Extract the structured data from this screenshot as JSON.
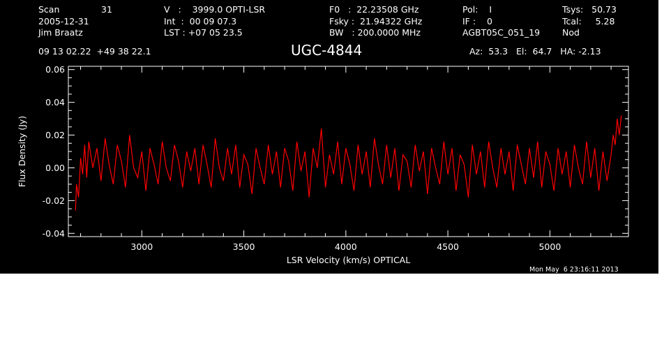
{
  "header": {
    "row1": {
      "scan_label": "Scan",
      "scan_value": "31",
      "velocity": "V   :    3999.0 OPTI-LSR",
      "f0": "F0   :  22.23508 GHz",
      "pol": "Pol:    I",
      "tsys": "Tsys:   50.73"
    },
    "row2": {
      "date": "2005-12-31",
      "int": "Int  :  00 09 07.3",
      "fsky": "Fsky :  21.94322 GHz",
      "if": "IF :    0",
      "tcal": "Tcal:     5.28"
    },
    "row3": {
      "observer": "Jim Braatz",
      "lst": "LST : +07 05 23.5",
      "bw": "BW   : 200.0000 MHz",
      "project": "AGBT05C_051_19",
      "procedure": "Nod"
    },
    "row4": {
      "coords": "09 13 02.22  +49 38 22.1",
      "source": "UGC-4844",
      "azelha": "Az:  53.3   El:  64.7   HA: -2.13"
    }
  },
  "timestamp": "Mon May  6 23:16:11 2013",
  "colors": {
    "background": "#000000",
    "foreground": "#ffffff",
    "trace": "#ff0000",
    "page": "#ffffff"
  },
  "chart_data": {
    "type": "line",
    "xlabel": "LSR Velocity (km/s) OPTICAL",
    "ylabel": "Flux Density (Jy)",
    "xlim": [
      2640,
      5385
    ],
    "ylim": [
      -0.042,
      0.062
    ],
    "x_ticks": [
      3000,
      3500,
      4000,
      4500,
      5000
    ],
    "x_tick_labels": [
      "3000",
      "3500",
      "4000",
      "4500",
      "5000"
    ],
    "y_ticks": [
      -0.04,
      -0.02,
      0.0,
      0.02,
      0.04,
      0.06
    ],
    "y_tick_labels": [
      "-0.04",
      "-0.02",
      "0.00",
      "0.02",
      "0.04",
      "0.06"
    ],
    "grid": false,
    "series": [
      {
        "x": [
          2675,
          2680,
          2690,
          2700,
          2710,
          2720,
          2730,
          2740,
          2760,
          2780,
          2800,
          2820,
          2840,
          2860,
          2880,
          2900,
          2920,
          2940,
          2960,
          2980,
          3000,
          3020,
          3040,
          3060,
          3080,
          3100,
          3120,
          3140,
          3160,
          3180,
          3200,
          3220,
          3240,
          3260,
          3280,
          3300,
          3320,
          3340,
          3360,
          3380,
          3400,
          3420,
          3440,
          3460,
          3480,
          3500,
          3520,
          3540,
          3560,
          3580,
          3600,
          3620,
          3640,
          3660,
          3680,
          3700,
          3720,
          3740,
          3760,
          3780,
          3800,
          3820,
          3840,
          3860,
          3880,
          3900,
          3920,
          3940,
          3960,
          3980,
          4000,
          4020,
          4040,
          4060,
          4080,
          4100,
          4120,
          4140,
          4160,
          4180,
          4200,
          4220,
          4240,
          4260,
          4280,
          4300,
          4320,
          4340,
          4360,
          4380,
          4400,
          4420,
          4440,
          4460,
          4480,
          4500,
          4520,
          4540,
          4560,
          4580,
          4600,
          4620,
          4640,
          4660,
          4680,
          4700,
          4720,
          4740,
          4760,
          4780,
          4800,
          4820,
          4840,
          4860,
          4880,
          4900,
          4920,
          4940,
          4960,
          4980,
          5000,
          5020,
          5040,
          5060,
          5080,
          5100,
          5120,
          5140,
          5160,
          5180,
          5200,
          5220,
          5240,
          5260,
          5280,
          5300,
          5310,
          5320,
          5330,
          5340,
          5350
        ],
        "y": [
          -0.026,
          -0.01,
          -0.018,
          0.006,
          -0.004,
          0.014,
          -0.006,
          0.016,
          0.0,
          0.012,
          -0.008,
          0.018,
          0.002,
          -0.01,
          0.014,
          0.004,
          -0.012,
          0.02,
          0.0,
          -0.006,
          0.01,
          -0.014,
          0.012,
          0.002,
          -0.01,
          0.016,
          0.0,
          -0.008,
          0.014,
          0.004,
          -0.012,
          0.01,
          -0.002,
          0.012,
          -0.01,
          0.014,
          0.002,
          -0.012,
          0.018,
          0.0,
          -0.008,
          0.012,
          -0.004,
          0.014,
          -0.012,
          0.008,
          0.002,
          -0.016,
          0.012,
          0.0,
          -0.01,
          0.014,
          -0.004,
          0.01,
          -0.012,
          0.012,
          0.004,
          -0.014,
          0.016,
          -0.002,
          0.01,
          -0.018,
          0.012,
          0.0,
          0.024,
          -0.012,
          0.008,
          -0.004,
          0.016,
          -0.01,
          0.012,
          0.002,
          -0.014,
          0.014,
          -0.004,
          0.01,
          -0.012,
          0.018,
          0.002,
          -0.01,
          0.014,
          -0.006,
          0.012,
          -0.014,
          0.008,
          0.004,
          -0.012,
          0.014,
          -0.002,
          0.01,
          -0.016,
          0.012,
          0.0,
          -0.01,
          0.016,
          -0.004,
          0.012,
          -0.014,
          0.008,
          0.002,
          -0.018,
          0.014,
          -0.004,
          0.01,
          -0.012,
          0.016,
          0.0,
          -0.012,
          0.012,
          -0.004,
          0.01,
          -0.014,
          0.014,
          0.002,
          -0.01,
          0.012,
          -0.006,
          0.016,
          -0.012,
          0.01,
          0.002,
          -0.014,
          0.012,
          -0.004,
          0.01,
          -0.012,
          0.014,
          0.0,
          -0.01,
          0.016,
          -0.006,
          0.012,
          -0.014,
          0.01,
          -0.008,
          0.008,
          0.02,
          0.014,
          0.03,
          0.02,
          0.032
        ]
      }
    ]
  }
}
